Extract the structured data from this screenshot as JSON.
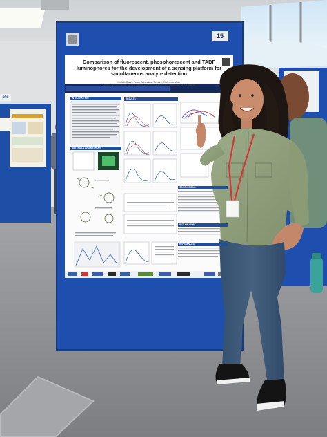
{
  "poster": {
    "title": "Comparison of fluorescent, phosphorescent and TADF luminophores for the development of a sensing platform for simultaneous analyte detection",
    "authors": "Michele Duarte Tonet, Sebastiaan Tiemann, Et Andrea Maier",
    "affiliation": "Organic Semiconductor Centre, School of Physics & Astronomy, University of St Andrews",
    "sections": {
      "introduction": "INTRODUCTION",
      "results": "RESULTS",
      "materials_and_methods": "MATERIALS AND METHODS",
      "conclusions": "CONCLUSIONS",
      "future_work": "FUTURE WORK",
      "references": "REFERENCES"
    }
  },
  "board_number": "15",
  "side_board_label": "pto",
  "colors": {
    "board_blue": "#1f4fae",
    "poster_header": "#1f4e9a",
    "shirt": "#8fa07a",
    "jeans": "#3d5778",
    "lanyard": "#d8343b",
    "carpet": "#8a8c90"
  }
}
